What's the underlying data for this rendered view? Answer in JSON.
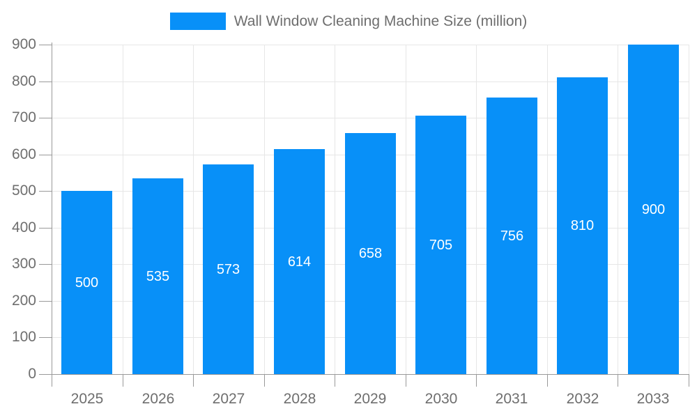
{
  "legend": {
    "label": "Wall Window Cleaning Machine Size (million)"
  },
  "colors": {
    "bar": "#0890f8",
    "axis": "#999999",
    "grid": "#e6e6e6",
    "tick_label": "#6e6e6e",
    "legend_text": "#6e6e6e",
    "value_label": "#ffffff",
    "background": "#ffffff"
  },
  "chart_data": {
    "type": "bar",
    "title": "Wall Window Cleaning Machine Size (million)",
    "categories": [
      "2025",
      "2026",
      "2027",
      "2028",
      "2029",
      "2030",
      "2031",
      "2032",
      "2033"
    ],
    "values": [
      500,
      535,
      573,
      614,
      658,
      705,
      756,
      810,
      900
    ],
    "series": [
      {
        "name": "Wall Window Cleaning Machine Size (million)",
        "values": [
          500,
          535,
          573,
          614,
          658,
          705,
          756,
          810,
          900
        ]
      }
    ],
    "xlabel": "",
    "ylabel": "",
    "ylim": [
      0,
      900
    ],
    "yticks": [
      0,
      100,
      200,
      300,
      400,
      500,
      600,
      700,
      800,
      900
    ],
    "grid": true,
    "legend_position": "top",
    "value_labels": "inside-center"
  }
}
